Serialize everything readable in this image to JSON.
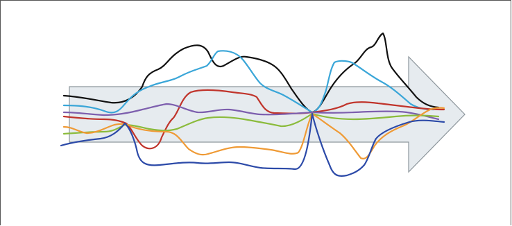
{
  "diagram": {
    "arrow": {
      "fill": "#e6ebef",
      "stroke": "#8d969c"
    },
    "lines": [
      {
        "id": "black",
        "color": "#111111"
      },
      {
        "id": "light-blue",
        "color": "#3aa6d8"
      },
      {
        "id": "red",
        "color": "#c0342b"
      },
      {
        "id": "purple",
        "color": "#7d5fae"
      },
      {
        "id": "green",
        "color": "#8bbb3c"
      },
      {
        "id": "orange",
        "color": "#ef9a35"
      },
      {
        "id": "navy",
        "color": "#2c4aa8"
      }
    ]
  }
}
